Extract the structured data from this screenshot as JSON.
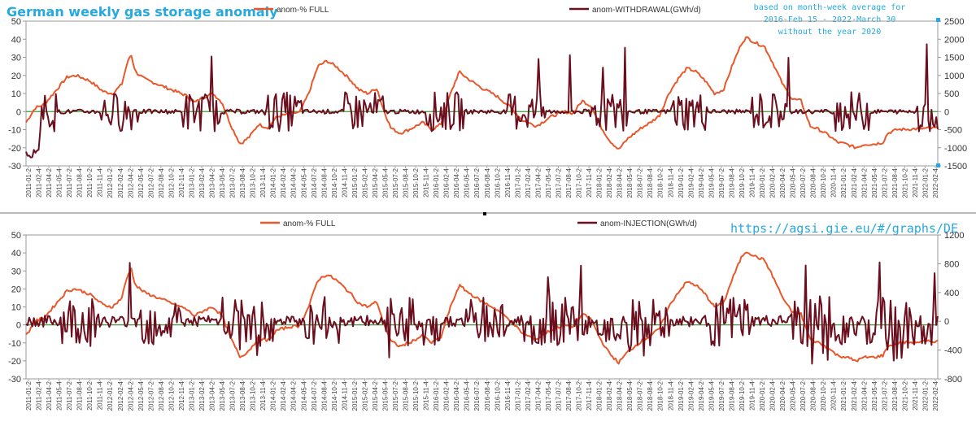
{
  "page": {
    "title": "German weekly gas storage anomaly",
    "note_lines": [
      "based on month-week average for",
      "2016-Feb 15 - 2022-March 30",
      "without the year 2020"
    ],
    "url": "https://agsi.gie.eu/#/graphs/DE",
    "colors": {
      "full": "#E8582B",
      "flow": "#6B0F1E",
      "zero": "#3A9A3A",
      "title": "#26A9E0"
    }
  },
  "chart_data": [
    {
      "type": "line",
      "x_ticks": [
        "2011-01-2",
        "2011-02-4",
        "2011-04-2",
        "2011-05-4",
        "2011-07-2",
        "2011-08-4",
        "2011-10-2",
        "2011-11-4",
        "2012-01-2",
        "2012-02-4",
        "2012-04-2",
        "2012-05-4",
        "2012-07-2",
        "2012-08-4",
        "2012-10-2",
        "2012-11-4",
        "2013-01-2",
        "2013-02-4",
        "2013-04-2",
        "2013-05-4",
        "2013-07-2",
        "2013-08-4",
        "2013-10-2",
        "2013-11-4",
        "2014-01-2",
        "2014-02-4",
        "2014-04-2",
        "2014-05-4",
        "2014-07-2",
        "2014-08-4",
        "2014-10-2",
        "2014-11-4",
        "2015-01-2",
        "2015-02-4",
        "2015-04-2",
        "2015-05-4",
        "2015-07-2",
        "2015-08-4",
        "2015-10-2",
        "2015-11-4",
        "2016-01-2",
        "2016-02-4",
        "2016-04-2",
        "2016-05-4",
        "2016-07-2",
        "2016-08-4",
        "2016-10-2",
        "2016-11-4",
        "2017-01-2",
        "2017-02-4",
        "2017-04-2",
        "2017-05-4",
        "2017-07-2",
        "2017-08-4",
        "2017-10-2",
        "2017-11-4",
        "2018-01-2",
        "2018-02-4",
        "2018-04-2",
        "2018-05-4",
        "2018-07-2",
        "2018-08-4",
        "2018-10-2",
        "2018-11-4",
        "2019-01-2",
        "2019-02-4",
        "2019-04-2",
        "2019-05-4",
        "2019-07-2",
        "2019-08-4",
        "2019-10-2",
        "2019-11-4",
        "2020-01-2",
        "2020-02-4",
        "2020-04-2",
        "2020-05-4",
        "2020-07-2",
        "2020-08-4",
        "2020-10-2",
        "2020-11-4",
        "2021-01-2",
        "2021-02-4",
        "2021-04-2",
        "2021-05-4",
        "2021-07-2",
        "2021-08-4",
        "2021-10-2",
        "2021-11-4",
        "2022-01-2",
        "2022-02-4"
      ],
      "y_left": {
        "ticks": [
          "50",
          "40",
          "30",
          "20",
          "10",
          "0",
          "-10",
          "-20",
          "-30"
        ],
        "min": -30,
        "max": 50
      },
      "y_right": {
        "ticks": [
          "2500",
          "2000",
          "1500",
          "1000",
          "500",
          "0",
          "-500",
          "-1000",
          "-1500"
        ],
        "min": -1500,
        "max": 2500
      },
      "series": [
        {
          "name": "anom-% FULL",
          "axis": "left"
        },
        {
          "name": "anom-WITHDRAWAL(GWh/d)",
          "axis": "right"
        }
      ]
    },
    {
      "type": "line",
      "x_ticks": [
        "2011-01-2",
        "2011-02-4",
        "2011-04-2",
        "2011-05-4",
        "2011-07-2",
        "2011-08-4",
        "2011-10-2",
        "2011-11-4",
        "2012-01-2",
        "2012-02-4",
        "2012-04-2",
        "2012-05-4",
        "2012-07-2",
        "2012-08-4",
        "2012-10-2",
        "2012-11-4",
        "2013-01-2",
        "2013-02-4",
        "2013-04-2",
        "2013-05-4",
        "2013-07-2",
        "2013-08-4",
        "2013-10-2",
        "2013-11-4",
        "2014-01-2",
        "2014-02-4",
        "2014-04-2",
        "2014-05-4",
        "2014-07-2",
        "2014-08-4",
        "2014-10-2",
        "2014-11-4",
        "2015-01-2",
        "2015-02-4",
        "2015-04-2",
        "2015-05-4",
        "2015-07-2",
        "2015-08-4",
        "2015-10-2",
        "2015-11-4",
        "2016-01-2",
        "2016-02-4",
        "2016-04-2",
        "2016-05-4",
        "2016-07-2",
        "2016-08-4",
        "2016-10-2",
        "2016-11-4",
        "2017-01-2",
        "2017-02-4",
        "2017-04-2",
        "2017-05-4",
        "2017-07-2",
        "2017-08-4",
        "2017-10-2",
        "2017-11-4",
        "2018-01-2",
        "2018-02-4",
        "2018-04-2",
        "2018-05-4",
        "2018-07-2",
        "2018-08-4",
        "2018-10-2",
        "2018-11-4",
        "2019-01-2",
        "2019-02-4",
        "2019-04-2",
        "2019-05-4",
        "2019-07-2",
        "2019-08-4",
        "2019-10-2",
        "2019-11-4",
        "2020-01-2",
        "2020-02-4",
        "2020-04-2",
        "2020-05-4",
        "2020-07-2",
        "2020-08-4",
        "2020-10-2",
        "2020-11-4",
        "2021-01-2",
        "2021-02-4",
        "2021-04-2",
        "2021-05-4",
        "2021-07-2",
        "2021-08-4",
        "2021-10-2",
        "2021-11-4",
        "2022-01-2",
        "2022-02-4"
      ],
      "y_left": {
        "ticks": [
          "50",
          "40",
          "30",
          "20",
          "10",
          "0",
          "-10",
          "-20",
          "-30"
        ],
        "min": -30,
        "max": 50
      },
      "y_right": {
        "ticks": [
          "1200",
          "800",
          "400",
          "0",
          "-400",
          "-800"
        ],
        "min": -800,
        "max": 1200
      },
      "series": [
        {
          "name": "anom-% FULL",
          "axis": "left"
        },
        {
          "name": "anom-INJECTION(GWh/d)",
          "axis": "right"
        }
      ]
    }
  ]
}
